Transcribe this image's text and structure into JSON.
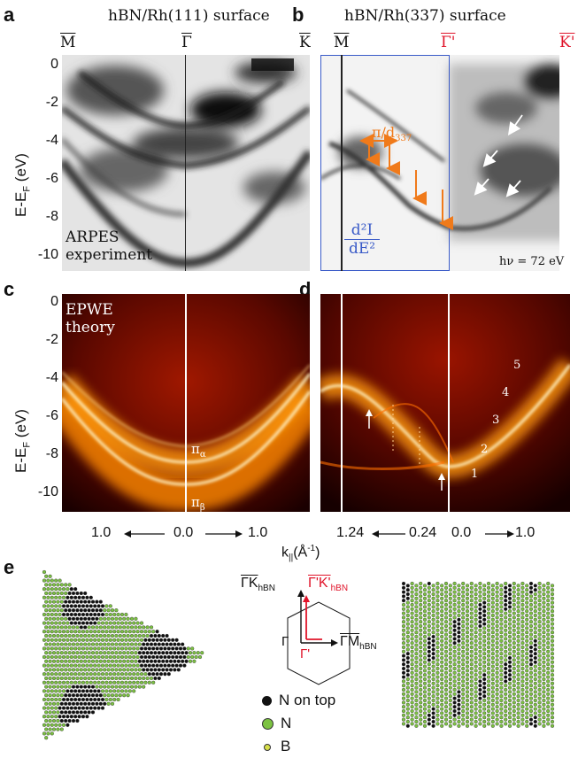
{
  "panels": {
    "a": {
      "letter": "a",
      "title": "hBN/Rh(111) surface",
      "sym_left": "M",
      "sym_mid": "Γ",
      "sym_right": "K",
      "label1": "ARPES",
      "label2": "experiment"
    },
    "b": {
      "letter": "b",
      "title": "hBN/Rh(337) surface",
      "sym_left": "M",
      "sym_mid": "Γ'",
      "sym_right": "K'",
      "pi_label": "π/d",
      "pi_sub": "337",
      "d2_num": "d²I",
      "d2_den": "dE²",
      "hv": "hν = 72 eV"
    },
    "c": {
      "letter": "c",
      "label1": "EPWE",
      "label2": "theory",
      "pi_a": "π",
      "pi_a_sub": "α",
      "pi_b": "π",
      "pi_b_sub": "β"
    },
    "d": {
      "letter": "d",
      "n1": "1",
      "n2": "2",
      "n3": "3",
      "n4": "4",
      "n5": "5"
    },
    "e": {
      "letter": "e",
      "k_hbn": "ΓK",
      "k_hbn_sub": "hBN",
      "k_red": "Γ'K'",
      "k_red_sub": "hBN",
      "m_hbn": "ΓM",
      "m_hbn_sub": "hBN",
      "gamma": "Γ",
      "gamma_prime": "Γ'"
    }
  },
  "axes": {
    "y_label": "E-E",
    "y_label_sub": "F",
    "y_label_unit": "(eV)",
    "y_ticks": [
      "0",
      "-2",
      "-4",
      "-6",
      "-8",
      "-10"
    ],
    "x_label": "k",
    "x_label_sub": "||",
    "x_label_unit": "(Å",
    "x_label_sup": "-1",
    "x_label_close": ")",
    "x_ticks_c": [
      "1.0",
      "0.0",
      "1.0"
    ],
    "x_ticks_d": [
      "1.24",
      "0.24",
      "0.0",
      "1.0"
    ]
  },
  "legend": {
    "n_top": "N on top",
    "n": "N",
    "b": "B"
  },
  "colors": {
    "n_top": "#111111",
    "n": "#7cc242",
    "b": "#d8e04a",
    "accent_red": "#e0142a",
    "orange": "#f07a1a",
    "blue_frame": "#3a5bc8"
  }
}
